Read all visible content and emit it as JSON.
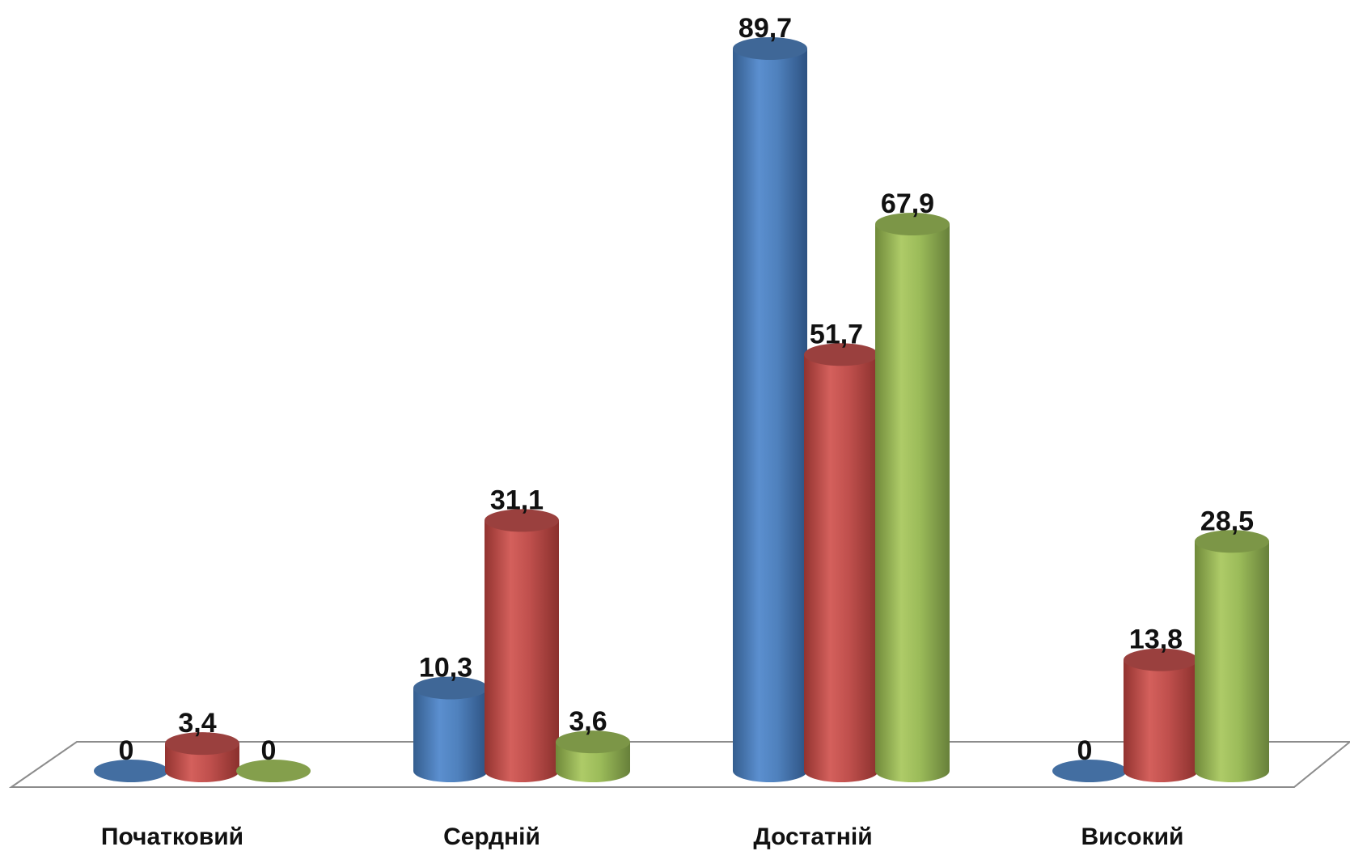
{
  "chart_data": {
    "type": "bar",
    "style": "3d-cylinder",
    "categories": [
      "Початковий",
      "Сердній",
      "Достатній",
      "Високий"
    ],
    "series": [
      {
        "values": [
          0,
          10.3,
          89.7,
          0
        ],
        "labels": [
          "0",
          "10,3",
          "89,7",
          "0"
        ],
        "color": "#4f81bd"
      },
      {
        "values": [
          3.4,
          31.1,
          51.7,
          13.8
        ],
        "labels": [
          "3,4",
          "31,1",
          "51,7",
          "13,8"
        ],
        "color": "#c0504d"
      },
      {
        "values": [
          0,
          3.6,
          67.9,
          28.5
        ],
        "labels": [
          "0",
          "3,6",
          "67,9",
          "28,5"
        ],
        "color": "#9bbb59"
      }
    ],
    "ylim": [
      0,
      89.7
    ],
    "legend": "none",
    "grid": false
  }
}
